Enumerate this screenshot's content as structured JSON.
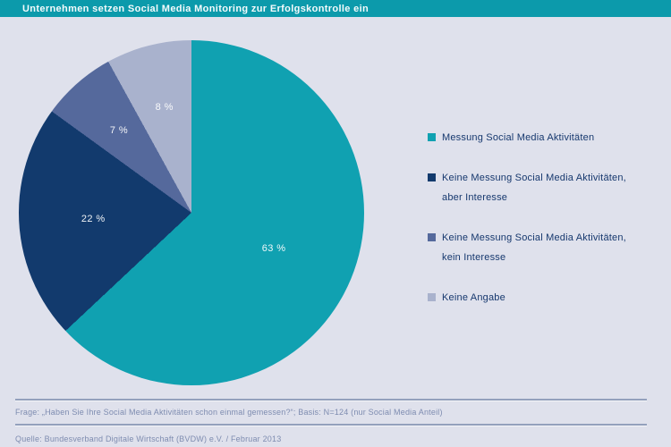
{
  "header": {
    "title": "Unternehmen setzen Social Media Monitoring zur Erfolgskontrolle ein"
  },
  "chart_data": {
    "type": "pie",
    "title": "Unternehmen setzen Social Media Monitoring zur Erfolgskontrolle ein",
    "start_angle_deg": 0,
    "direction": "clockwise",
    "legend_position": "right",
    "slices": [
      {
        "label": "Messung Social Media Aktivitäten",
        "legend_lines": [
          "Messung Social Media Aktivitäten"
        ],
        "value_pct": 63,
        "value_label": "63 %",
        "color": "#10A1B1"
      },
      {
        "label": "Keine Messung Social Media Aktivitäten, aber Interesse",
        "legend_lines": [
          "Keine Messung Social Media Aktivitäten,",
          "aber Interesse"
        ],
        "value_pct": 22,
        "value_label": "22 %",
        "color": "#123A6D"
      },
      {
        "label": "Keine Messung Social Media Aktivitäten, kein Interesse",
        "legend_lines": [
          "Keine Messung Social Media Aktivitäten,",
          "kein Interesse"
        ],
        "value_pct": 7,
        "value_label": "7 %",
        "color": "#55699C"
      },
      {
        "label": "Keine Angabe",
        "legend_lines": [
          "Keine Angabe"
        ],
        "value_pct": 8,
        "value_label": "8 %",
        "color": "#A9B2CD"
      }
    ]
  },
  "footer": {
    "question": "Frage: „Haben Sie Ihre Social Media Aktivitäten schon einmal gemessen?“; Basis: N=124 (nur Social Media Anteil)",
    "source": "Quelle: Bundesverband Digitale Wirtschaft (BVDW) e.V. / Februar 2013"
  }
}
